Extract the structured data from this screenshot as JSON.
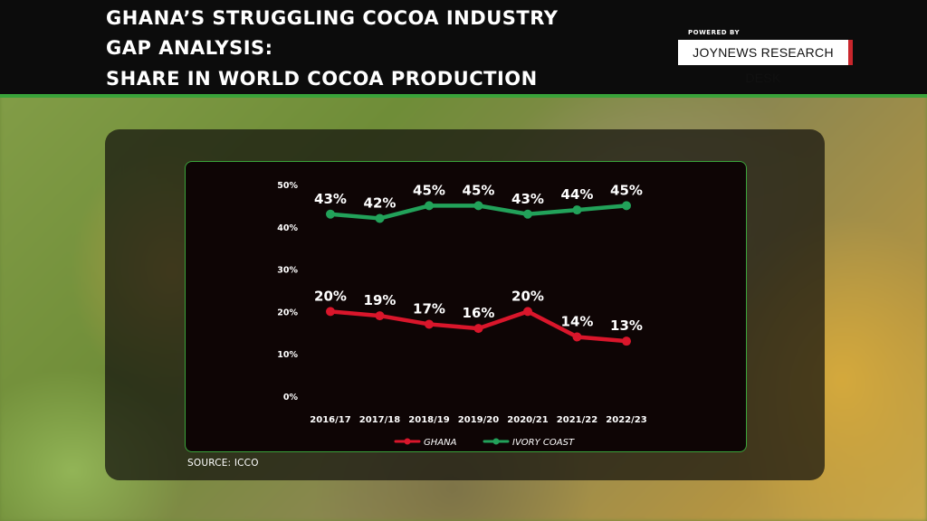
{
  "header": {
    "title_lines": [
      "GHANA’S STRUGGLING COCOA INDUSTRY",
      "GAP ANALYSIS:",
      "SHARE IN WORLD COCOA PRODUCTION"
    ],
    "powered_by": "POWERED BY",
    "brand": "JOYNEWS RESEARCH DESK"
  },
  "source": "SOURCE: ICCO",
  "colors": {
    "ghana": "#d9162b",
    "ivory_coast": "#22a25a",
    "accent": "#3aa33a"
  },
  "chart_data": {
    "type": "line",
    "categories": [
      "2016/17",
      "2017/18",
      "2018/19",
      "2019/20",
      "2020/21",
      "2021/22",
      "2022/23"
    ],
    "series": [
      {
        "name": "IVORY COAST",
        "values": [
          43,
          42,
          45,
          45,
          43,
          44,
          45
        ],
        "labels": [
          "43%",
          "42%",
          "45%",
          "45%",
          "43%",
          "44%",
          "45%"
        ],
        "color": "#22a25a"
      },
      {
        "name": "GHANA",
        "values": [
          20,
          19,
          17,
          16,
          20,
          14,
          13
        ],
        "labels": [
          "20%",
          "19%",
          "17%",
          "16%",
          "20%",
          "14%",
          "13%"
        ],
        "color": "#d9162b"
      }
    ],
    "ylim": [
      0,
      50
    ],
    "yticks": [
      "0%",
      "10%",
      "20%",
      "30%",
      "40%",
      "50%"
    ],
    "legend": [
      "GHANA",
      "IVORY COAST"
    ],
    "legend_position": "bottom",
    "grid": false
  }
}
